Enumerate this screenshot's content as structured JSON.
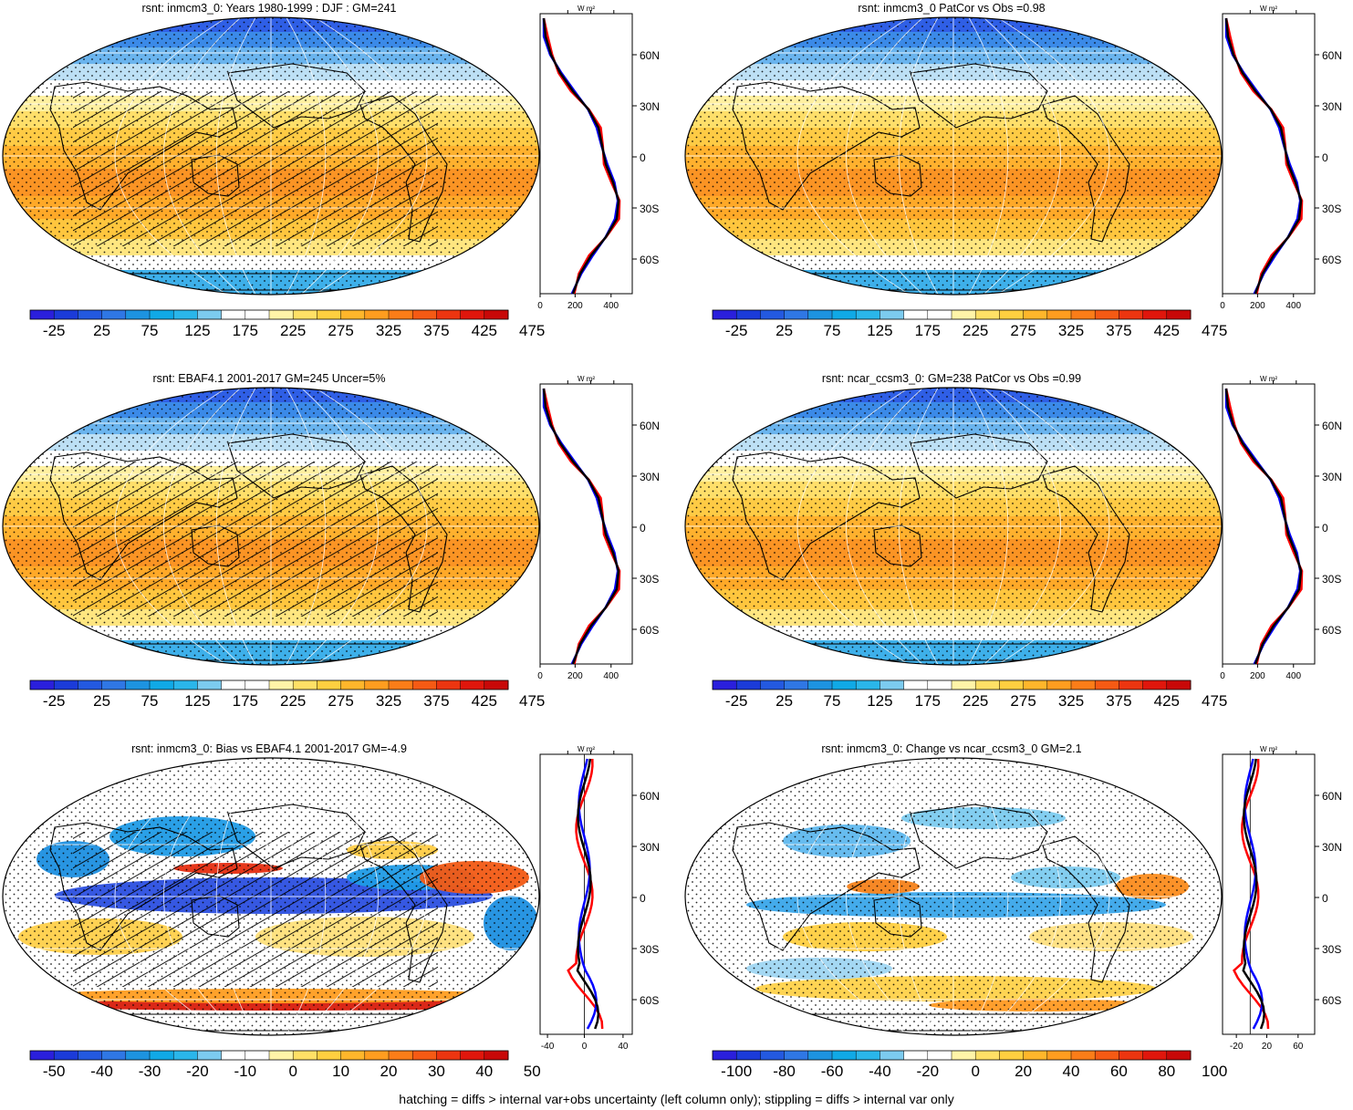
{
  "footer": "hatching = diffs > internal var+obs uncertainty (left column only); stippling = diffs > internal var only",
  "unit_label": "W m²",
  "lat_labels": [
    "60N",
    "30N",
    "0",
    "30S",
    "60S"
  ],
  "panels": [
    {
      "title": "rsnt: inmcm3_0: Years 1980-1999 : DJF : GM=241",
      "kind": "abs",
      "hatched": true,
      "colorbar": {
        "labels": [
          "-25",
          "25",
          "75",
          "125",
          "175",
          "225",
          "275",
          "325",
          "375",
          "425",
          "475"
        ]
      },
      "profile_ticks": [
        "0",
        "200",
        "400"
      ]
    },
    {
      "title": "rsnt: inmcm3_0 PatCor vs Obs =0.98",
      "kind": "abs",
      "hatched": false,
      "colorbar": {
        "labels": [
          "-25",
          "25",
          "75",
          "125",
          "175",
          "225",
          "275",
          "325",
          "375",
          "425",
          "475"
        ]
      },
      "profile_ticks": [
        "0",
        "200",
        "400"
      ]
    },
    {
      "title": "rsnt: EBAF4.1 2001-2017 GM=245 Uncer=5%",
      "kind": "abs",
      "hatched": true,
      "colorbar": {
        "labels": [
          "-25",
          "25",
          "75",
          "125",
          "175",
          "225",
          "275",
          "325",
          "375",
          "425",
          "475"
        ]
      },
      "profile_ticks": [
        "0",
        "200",
        "400"
      ]
    },
    {
      "title": "rsnt: ncar_ccsm3_0: GM=238 PatCor vs Obs =0.99",
      "kind": "abs",
      "hatched": false,
      "colorbar": {
        "labels": [
          "-25",
          "25",
          "75",
          "125",
          "175",
          "225",
          "275",
          "325",
          "375",
          "425",
          "475"
        ]
      },
      "profile_ticks": [
        "0",
        "200",
        "400"
      ]
    },
    {
      "title": "rsnt: inmcm3_0: Bias vs EBAF4.1 2001-2017 GM=-4.9",
      "kind": "bias",
      "hatched": true,
      "colorbar": {
        "labels": [
          "-50",
          "-40",
          "-30",
          "-20",
          "-10",
          "0",
          "10",
          "20",
          "30",
          "40",
          "50"
        ]
      },
      "profile_ticks": [
        "-40",
        "0",
        "40"
      ]
    },
    {
      "title": "rsnt: inmcm3_0: Change vs ncar_ccsm3_0 GM=2.1",
      "kind": "change",
      "hatched": false,
      "colorbar": {
        "labels": [
          "-100",
          "-80",
          "-60",
          "-40",
          "-20",
          "0",
          "20",
          "40",
          "60",
          "80",
          "100"
        ]
      },
      "profile_ticks": [
        "-20",
        "20",
        "60"
      ]
    }
  ],
  "colors": {
    "scale": [
      "#2a1fdc",
      "#1b3bd9",
      "#2359e0",
      "#2f77e5",
      "#1d93e0",
      "#10a9e6",
      "#2ab6ea",
      "#7ccbef",
      "#ffffff",
      "#ffffff",
      "#fff4a8",
      "#ffe066",
      "#ffcf40",
      "#ffb62b",
      "#ff9d1f",
      "#fb7d18",
      "#f55a14",
      "#ec3510",
      "#e0160c",
      "#c80808"
    ],
    "model_line": "#ff0000",
    "obs_line": "#0000ff",
    "ref_line": "#000000"
  }
}
